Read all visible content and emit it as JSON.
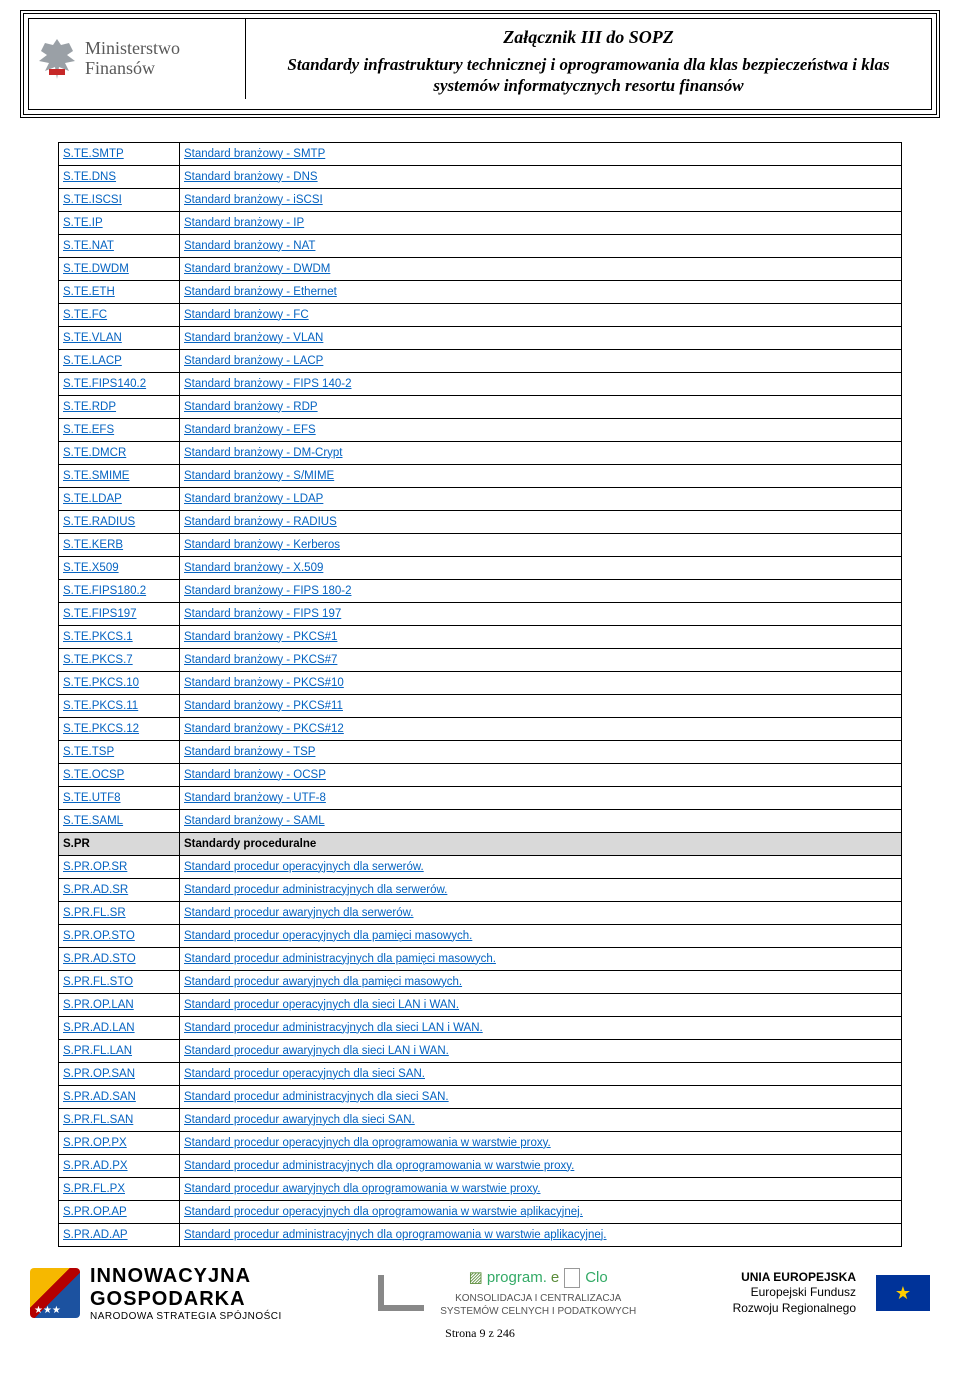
{
  "header": {
    "ministry_line1": "Ministerstwo",
    "ministry_line2": "Finansów",
    "title": "Załącznik III do SOPZ",
    "subtitle": "Standardy infrastruktury technicznej i oprogramowania dla klas bezpieczeństwa i klas systemów informatycznych resortu finansów"
  },
  "rows": [
    {
      "code": "S.TE.SMTP",
      "desc": "Standard branżowy  - SMTP",
      "link": true
    },
    {
      "code": "S.TE.DNS",
      "desc": "Standard branżowy - DNS",
      "link": true
    },
    {
      "code": "S.TE.ISCSI",
      "desc": "Standard branżowy - iSCSI",
      "link": true
    },
    {
      "code": "S.TE.IP",
      "desc": "Standard branżowy - IP",
      "link": true
    },
    {
      "code": "S.TE.NAT",
      "desc": "Standard branżowy - NAT",
      "link": true
    },
    {
      "code": "S.TE.DWDM",
      "desc": "Standard branżowy - DWDM",
      "link": true
    },
    {
      "code": "S.TE.ETH",
      "desc": "Standard branżowy - Ethernet",
      "link": true
    },
    {
      "code": "S.TE.FC",
      "desc": "Standard branżowy - FC",
      "link": true
    },
    {
      "code": "S.TE.VLAN",
      "desc": "Standard branżowy - VLAN",
      "link": true
    },
    {
      "code": "S.TE.LACP",
      "desc": "Standard branżowy - LACP",
      "link": true
    },
    {
      "code": "S.TE.FIPS140.2",
      "desc": "Standard branżowy - FIPS 140-2",
      "link": true
    },
    {
      "code": "S.TE.RDP",
      "desc": "Standard branżowy - RDP",
      "link": true
    },
    {
      "code": "S.TE.EFS",
      "desc": "Standard branżowy - EFS",
      "link": true
    },
    {
      "code": "S.TE.DMCR",
      "desc": "Standard branżowy - DM-Crypt",
      "link": true
    },
    {
      "code": "S.TE.SMIME",
      "desc": "Standard branżowy - S/MIME",
      "link": true
    },
    {
      "code": "S.TE.LDAP",
      "desc": "Standard branżowy - LDAP",
      "link": true
    },
    {
      "code": "S.TE.RADIUS",
      "desc": "Standard branżowy - RADIUS",
      "link": true
    },
    {
      "code": "S.TE.KERB",
      "desc": "Standard branżowy - Kerberos",
      "link": true
    },
    {
      "code": "S.TE.X509",
      "desc": "Standard branżowy - X.509",
      "link": true
    },
    {
      "code": "S.TE.FIPS180.2",
      "desc": "Standard branżowy - FIPS 180-2",
      "link": true
    },
    {
      "code": "S.TE.FIPS197",
      "desc": "Standard branżowy - FIPS 197",
      "link": true
    },
    {
      "code": "S.TE.PKCS.1",
      "desc": "Standard branżowy - PKCS#1",
      "link": true
    },
    {
      "code": "S.TE.PKCS.7",
      "desc": "Standard branżowy - PKCS#7",
      "link": true
    },
    {
      "code": "S.TE.PKCS.10",
      "desc": "Standard branżowy - PKCS#10",
      "link": true
    },
    {
      "code": "S.TE.PKCS.11",
      "desc": "Standard branżowy - PKCS#11",
      "link": true
    },
    {
      "code": "S.TE.PKCS.12",
      "desc": "Standard branżowy - PKCS#12",
      "link": true
    },
    {
      "code": "S.TE.TSP",
      "desc": "Standard branżowy - TSP",
      "link": true
    },
    {
      "code": "S.TE.OCSP",
      "desc": "Standard branżowy - OCSP",
      "link": true
    },
    {
      "code": "S.TE.UTF8",
      "desc": "Standard branżowy - UTF-8",
      "link": true
    },
    {
      "code": "S.TE.SAML",
      "desc": "Standard branżowy - SAML",
      "link": true
    },
    {
      "code": "S.PR",
      "desc": "Standardy proceduralne",
      "section": true
    },
    {
      "code": "S.PR.OP.SR",
      "desc": "Standard procedur operacyjnych dla serwerów.",
      "link": true
    },
    {
      "code": "S.PR.AD.SR",
      "desc": "Standard procedur administracyjnych dla serwerów.",
      "link": true
    },
    {
      "code": "S.PR.FL.SR",
      "desc": "Standard procedur awaryjnych dla serwerów.",
      "link": true
    },
    {
      "code": "S.PR.OP.STO",
      "desc": "Standard procedur operacyjnych dla pamięci masowych.",
      "link": true
    },
    {
      "code": "S.PR.AD.STO",
      "desc": "Standard procedur administracyjnych dla pamięci masowych.",
      "link": true
    },
    {
      "code": "S.PR.FL.STO",
      "desc": "Standard procedur awaryjnych dla pamięci masowych.",
      "link": true
    },
    {
      "code": "S.PR.OP.LAN",
      "desc": "Standard procedur operacyjnych dla sieci LAN i WAN.",
      "link": true
    },
    {
      "code": "S.PR.AD.LAN",
      "desc": "Standard procedur administracyjnych dla sieci LAN i WAN.",
      "link": true
    },
    {
      "code": "S.PR.FL.LAN",
      "desc": "Standard procedur awaryjnych dla sieci LAN i WAN.",
      "link": true
    },
    {
      "code": "S.PR.OP.SAN",
      "desc": "Standard procedur operacyjnych dla sieci SAN.",
      "link": true
    },
    {
      "code": "S.PR.AD.SAN",
      "desc": "Standard procedur administracyjnych dla sieci SAN.",
      "link": true
    },
    {
      "code": "S.PR.FL.SAN",
      "desc": "Standard procedur awaryjnych dla sieci SAN.",
      "link": true
    },
    {
      "code": "S.PR.OP.PX",
      "desc": "Standard procedur operacyjnych dla oprogramowania w warstwie proxy.",
      "link": true
    },
    {
      "code": "S.PR.AD.PX",
      "desc": "Standard procedur administracyjnych dla oprogramowania w warstwie proxy.",
      "link": true
    },
    {
      "code": "S.PR.FL.PX",
      "desc": "Standard procedur awaryjnych dla oprogramowania w warstwie proxy.",
      "link": true
    },
    {
      "code": "S.PR.OP.AP",
      "desc": "Standard procedur operacyjnych dla oprogramowania w warstwie aplikacyjnej.",
      "link": true
    },
    {
      "code": "S.PR.AD.AP",
      "desc": "Standard procedur administracyjnych dla oprogramowania w warstwie aplikacyjnej.",
      "link": true
    }
  ],
  "footer": {
    "ig_line1": "INNOWACYJNA",
    "ig_line2": "GOSPODARKA",
    "ig_line3": "NARODOWA STRATEGIA SPÓJNOŚCI",
    "eclo_brand": "program.",
    "eclo_e": "e",
    "eclo_clo": "Clo",
    "eclo_line1": "KONSOLIDACJA I CENTRALIZACJA",
    "eclo_line2": "SYSTEMÓW CELNYCH I PODATKOWYCH",
    "eu_line1": "UNIA EUROPEJSKA",
    "eu_line2": "Europejski Fundusz",
    "eu_line3": "Rozwoju Regionalnego",
    "page": "Strona 9 z 246"
  }
}
